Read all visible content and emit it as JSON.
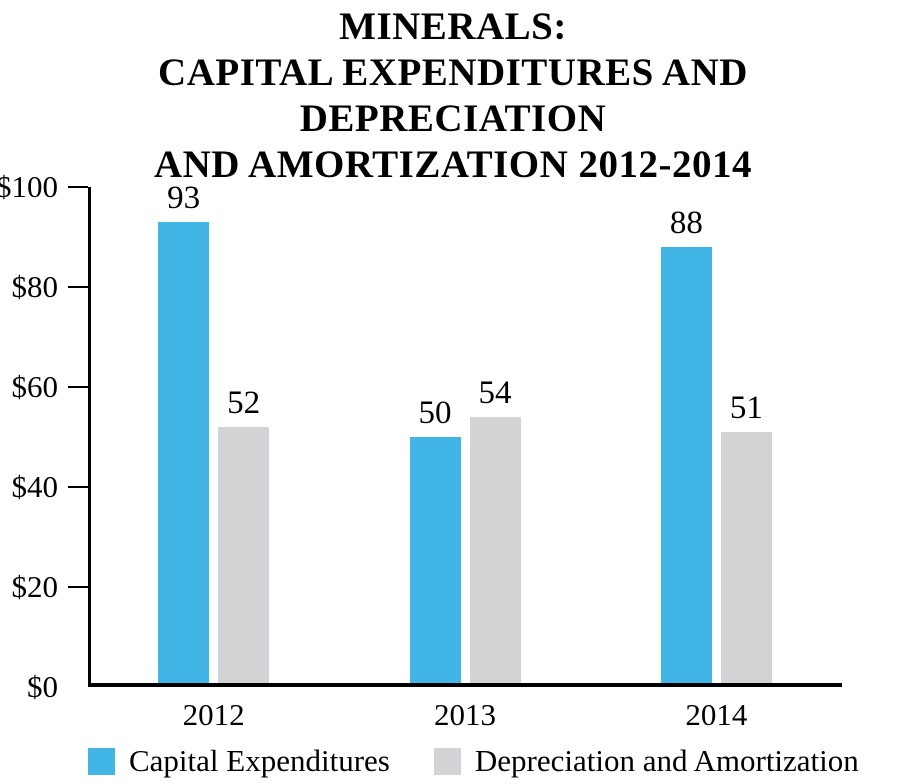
{
  "title": {
    "lines": [
      "MINERALS:",
      "CAPITAL EXPENDITURES AND DEPRECIATION",
      "AND AMORTIZATION 2012-2014"
    ]
  },
  "colors": {
    "capital_expenditures": "#41b6e6",
    "depreciation_amortization": "#d1d3d4",
    "axis": "#000000",
    "text": "#000000",
    "background": "#ffffff"
  },
  "chart_data": {
    "type": "bar",
    "title": "MINERALS: CAPITAL EXPENDITURES AND DEPRECIATION AND AMORTIZATION 2012-2014",
    "categories": [
      "2012",
      "2013",
      "2014"
    ],
    "series": [
      {
        "name": "Capital Expenditures",
        "color": "#41b6e6",
        "values": [
          93,
          50,
          88
        ]
      },
      {
        "name": "Depreciation and Amortization",
        "color": "#d1d3d4",
        "values": [
          52,
          54,
          51
        ]
      }
    ],
    "xlabel": "",
    "ylabel": "",
    "ylim": [
      0,
      100
    ],
    "yticks": [
      0,
      20,
      40,
      60,
      80,
      100
    ],
    "ytick_labels": [
      "$0",
      "$20",
      "$40",
      "$60",
      "$80",
      "$100"
    ],
    "grid": false,
    "bar_value_labels": true,
    "legend_position": "bottom"
  },
  "legend": {
    "items": [
      {
        "label": "Capital Expenditures",
        "color": "#41b6e6"
      },
      {
        "label": "Depreciation and Amortization",
        "color": "#d1d3d4"
      }
    ]
  }
}
